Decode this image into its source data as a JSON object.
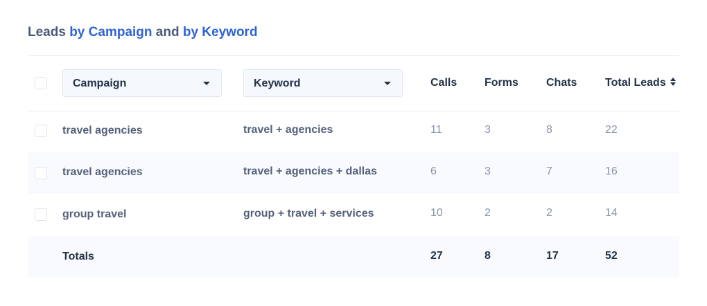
{
  "title": {
    "prefix": "Leads",
    "campaign_link": "by Campaign",
    "joiner": "and",
    "keyword_link": "by Keyword"
  },
  "header": {
    "campaign_dropdown": "Campaign",
    "keyword_dropdown": "Keyword",
    "calls": "Calls",
    "forms": "Forms",
    "chats": "Chats",
    "total_leads": "Total Leads"
  },
  "rows": [
    {
      "campaign": "travel agencies",
      "keyword": "travel + agencies",
      "calls": "11",
      "forms": "3",
      "chats": "8",
      "total": "22"
    },
    {
      "campaign": "travel agencies",
      "keyword": "travel + agencies + dallas",
      "calls": "6",
      "forms": "3",
      "chats": "7",
      "total": "16"
    },
    {
      "campaign": "group travel",
      "keyword": "group + travel + services",
      "calls": "10",
      "forms": "2",
      "chats": "2",
      "total": "14"
    }
  ],
  "totals": {
    "label": "Totals",
    "calls": "27",
    "forms": "8",
    "chats": "17",
    "total": "52"
  },
  "colors": {
    "link": "#2e63d3",
    "heading": "#243248",
    "row_alt": "#f8fafd"
  }
}
